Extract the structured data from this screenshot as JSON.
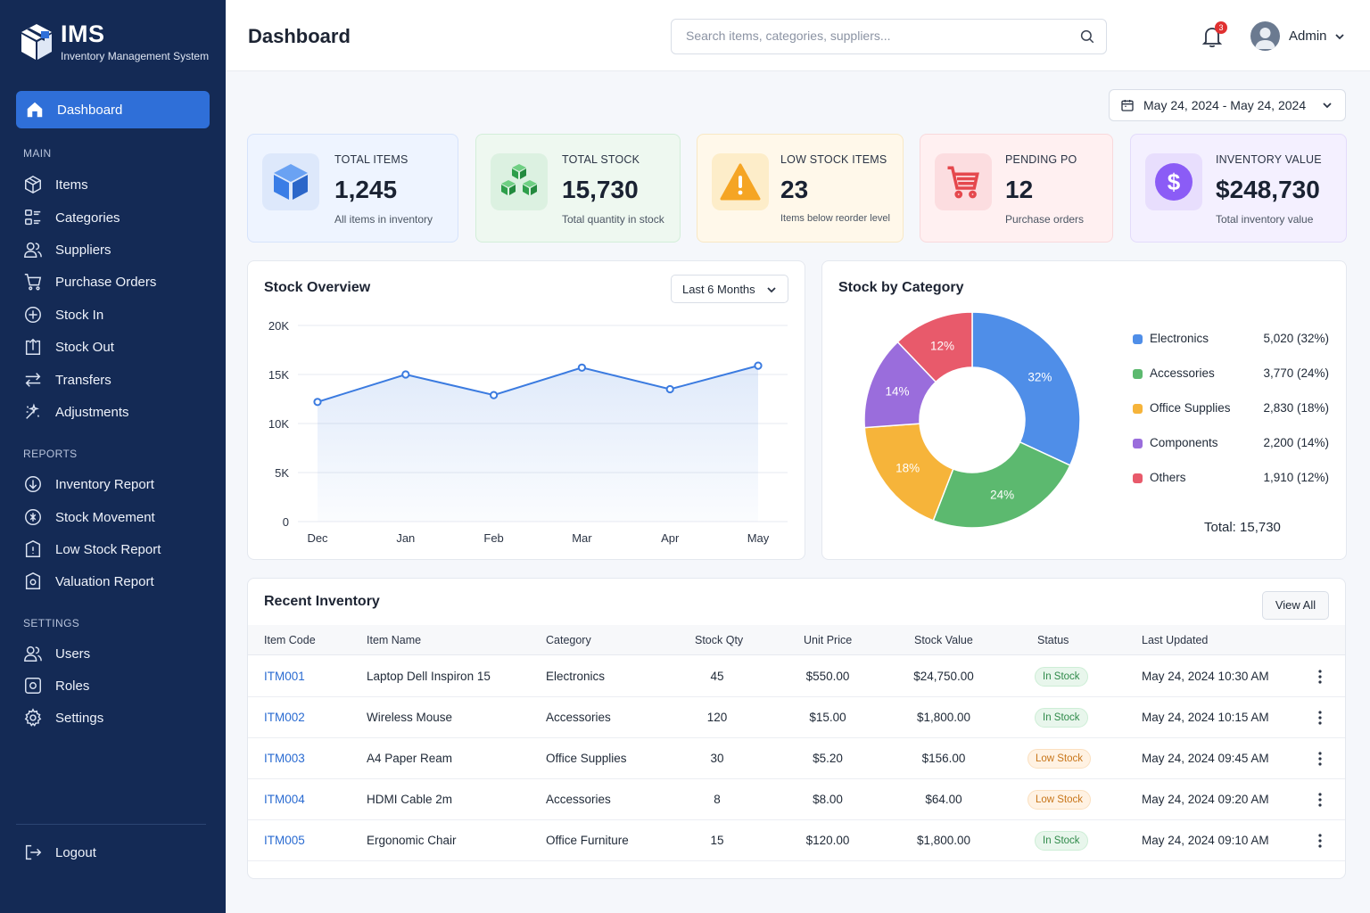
{
  "brand": {
    "title": "IMS",
    "subtitle": "Inventory Management System"
  },
  "sidebar": {
    "active": {
      "label": "Dashboard",
      "icon": "home-icon"
    },
    "sections": {
      "main": "MAIN",
      "reports": "REPORTS",
      "settings": "SETTINGS"
    },
    "main_items": [
      {
        "label": "Items",
        "icon": "box-icon"
      },
      {
        "label": "Categories",
        "icon": "categories-icon"
      },
      {
        "label": "Suppliers",
        "icon": "users-icon"
      },
      {
        "label": "Purchase Orders",
        "icon": "cart-icon"
      },
      {
        "label": "Stock In",
        "icon": "plus-circle-icon"
      },
      {
        "label": "Stock Out",
        "icon": "export-icon"
      },
      {
        "label": "Transfers",
        "icon": "transfer-icon"
      },
      {
        "label": "Adjustments",
        "icon": "adjust-icon"
      }
    ],
    "report_items": [
      {
        "label": "Inventory Report",
        "icon": "report-icon"
      },
      {
        "label": "Stock Movement",
        "icon": "movement-icon"
      },
      {
        "label": "Low Stock Report",
        "icon": "low-stock-icon"
      },
      {
        "label": "Valuation Report",
        "icon": "valuation-icon"
      }
    ],
    "settings_items": [
      {
        "label": "Users",
        "icon": "users-icon"
      },
      {
        "label": "Roles",
        "icon": "roles-icon"
      },
      {
        "label": "Settings",
        "icon": "gear-icon"
      }
    ],
    "logout": "Logout"
  },
  "header": {
    "title": "Dashboard",
    "search_placeholder": "Search items, categories, suppliers...",
    "notification_count": "3",
    "user_name": "Admin"
  },
  "date_range": "May 24, 2024 - May 24, 2024",
  "stats": [
    {
      "label": "TOTAL ITEMS",
      "value": "1,245",
      "sub": "All items in inventory",
      "icon": "cube-icon",
      "color": "#3b82f6"
    },
    {
      "label": "TOTAL STOCK",
      "value": "15,730",
      "sub": "Total quantity in stock",
      "icon": "boxes-icon",
      "color": "#22a84a"
    },
    {
      "label": "LOW STOCK ITEMS",
      "value": "23",
      "sub": "Items below reorder level",
      "icon": "warning-icon",
      "color": "#f5a524"
    },
    {
      "label": "PENDING PO",
      "value": "12",
      "sub": "Purchase orders",
      "icon": "cart-icon",
      "color": "#e5484d"
    },
    {
      "label": "INVENTORY VALUE",
      "value": "$248,730",
      "sub": "Total inventory value",
      "icon": "dollar-icon",
      "color": "#8b5cf6"
    }
  ],
  "stock_overview": {
    "title": "Stock Overview",
    "period": "Last 6 Months"
  },
  "stock_by_category": {
    "title": "Stock by Category",
    "total_label": "Total: 15,730"
  },
  "chart_data": [
    {
      "type": "area",
      "title": "Stock Overview",
      "categories": [
        "Dec",
        "Jan",
        "Feb",
        "Mar",
        "Apr",
        "May"
      ],
      "values": [
        12200,
        15000,
        12900,
        15700,
        13500,
        15900
      ],
      "ylim": [
        0,
        20000
      ],
      "yticks": [
        "0",
        "5K",
        "10K",
        "15K",
        "20K"
      ],
      "ytick_values": [
        0,
        5000,
        10000,
        15000,
        20000
      ],
      "color": "#3b7be0",
      "grid": true
    },
    {
      "type": "pie",
      "title": "Stock by Category",
      "slices": [
        {
          "name": "Electronics",
          "value": 5020,
          "percent": "32%",
          "legend_value": "5,020 (32%)",
          "color": "#4f8ee8"
        },
        {
          "name": "Accessories",
          "value": 3770,
          "percent": "24%",
          "legend_value": "3,770 (24%)",
          "color": "#5cb96f"
        },
        {
          "name": "Office Supplies",
          "value": 2830,
          "percent": "18%",
          "legend_value": "2,830 (18%)",
          "color": "#f6b43a"
        },
        {
          "name": "Components",
          "value": 2200,
          "percent": "14%",
          "legend_value": "2,200 (14%)",
          "color": "#9a6ddc"
        },
        {
          "name": "Others",
          "value": 1910,
          "percent": "12%",
          "legend_value": "1,910 (12%)",
          "color": "#e85a6b"
        }
      ],
      "legend": "right"
    }
  ],
  "recent_inventory": {
    "title": "Recent Inventory",
    "view_all": "View All",
    "columns": [
      "Item Code",
      "Item Name",
      "Category",
      "Stock Qty",
      "Unit Price",
      "Stock Value",
      "Status",
      "Last Updated"
    ],
    "rows": [
      {
        "code": "ITM001",
        "name": "Laptop Dell Inspiron 15",
        "category": "Electronics",
        "qty": "45",
        "price": "$550.00",
        "value": "$24,750.00",
        "status": "In Stock",
        "status_type": "in",
        "updated": "May 24, 2024 10:30 AM"
      },
      {
        "code": "ITM002",
        "name": "Wireless Mouse",
        "category": "Accessories",
        "qty": "120",
        "price": "$15.00",
        "value": "$1,800.00",
        "status": "In Stock",
        "status_type": "in",
        "updated": "May 24, 2024 10:15 AM"
      },
      {
        "code": "ITM003",
        "name": "A4 Paper Ream",
        "category": "Office Supplies",
        "qty": "30",
        "price": "$5.20",
        "value": "$156.00",
        "status": "Low Stock",
        "status_type": "low",
        "updated": "May 24, 2024 09:45 AM"
      },
      {
        "code": "ITM004",
        "name": "HDMI Cable 2m",
        "category": "Accessories",
        "qty": "8",
        "price": "$8.00",
        "value": "$64.00",
        "status": "Low Stock",
        "status_type": "low",
        "updated": "May 24, 2024 09:20 AM"
      },
      {
        "code": "ITM005",
        "name": "Ergonomic Chair",
        "category": "Office Furniture",
        "qty": "15",
        "price": "$120.00",
        "value": "$1,800.00",
        "status": "In Stock",
        "status_type": "in",
        "updated": "May 24, 2024 09:10 AM"
      }
    ]
  }
}
